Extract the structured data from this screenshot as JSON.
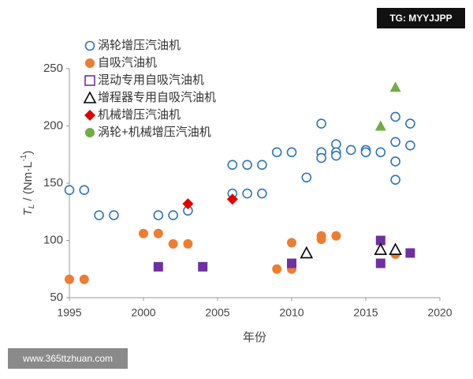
{
  "chart_data": {
    "type": "scatter",
    "xlabel": "年份",
    "ylabel": [
      "T",
      "L",
      " / (Nm·L",
      "-1",
      ")"
    ],
    "xlim": [
      1995,
      2020
    ],
    "xticks": [
      1995,
      2000,
      2005,
      2010,
      2015,
      2020
    ],
    "ylim": [
      50,
      250
    ],
    "yticks": [
      50,
      100,
      150,
      200,
      250
    ],
    "grid": false,
    "legend": "upper-left",
    "series": [
      {
        "name": "涡轮增压汽油机",
        "color": "#2e75b6",
        "marker": "circle-open",
        "legend_marker": "circle-open",
        "x": [
          1995,
          1996,
          1997,
          1998,
          2001,
          2002,
          2003,
          2006,
          2006,
          2007,
          2007,
          2008,
          2008,
          2009,
          2010,
          2011,
          2012,
          2012,
          2012,
          2013,
          2013,
          2013,
          2014,
          2015,
          2015,
          2016,
          2017,
          2017,
          2017,
          2017,
          2018,
          2018
        ],
        "values": [
          144,
          144,
          122,
          122,
          122,
          122,
          126,
          166,
          141,
          166,
          141,
          166,
          141,
          177,
          177,
          155,
          202,
          177,
          172,
          184,
          177,
          174,
          179,
          179,
          177,
          177,
          208,
          186,
          169,
          153,
          202,
          183
        ]
      },
      {
        "name": "自吸汽油机",
        "color": "#ed7d31",
        "marker": "circle",
        "legend_marker": "circle",
        "x": [
          1995,
          1996,
          2000,
          2001,
          2002,
          2003,
          2009,
          2010,
          2010,
          2012,
          2012,
          2013,
          2017
        ],
        "values": [
          66,
          66,
          106,
          106,
          97,
          97,
          75,
          75,
          98,
          104,
          101,
          104,
          88
        ]
      },
      {
        "name": "混动专用自吸汽油机",
        "color": "#7030a0",
        "marker": "square",
        "legend_marker": "square-open",
        "x": [
          2001,
          2004,
          2010,
          2016,
          2016,
          2018
        ],
        "values": [
          77,
          77,
          80,
          100,
          80,
          89
        ]
      },
      {
        "name": "增程器专用自吸汽油机",
        "color": "#000000",
        "marker": "triangle-open",
        "legend_marker": "triangle-open",
        "x": [
          2011,
          2016,
          2017
        ],
        "values": [
          89,
          92,
          92
        ]
      },
      {
        "name": "机械增压汽油机",
        "color": "#e00000",
        "marker": "diamond",
        "legend_marker": "diamond",
        "x": [
          2003,
          2006
        ],
        "values": [
          132,
          136
        ]
      },
      {
        "name": "涡轮+机械增压汽油机",
        "color": "#70ad47",
        "marker": "triangle",
        "legend_marker": "circle",
        "x": [
          2016,
          2017
        ],
        "values": [
          200,
          234
        ]
      }
    ]
  },
  "watermarks": [
    "TG: MYYJJPP",
    "www.365ttzhuan.com"
  ]
}
